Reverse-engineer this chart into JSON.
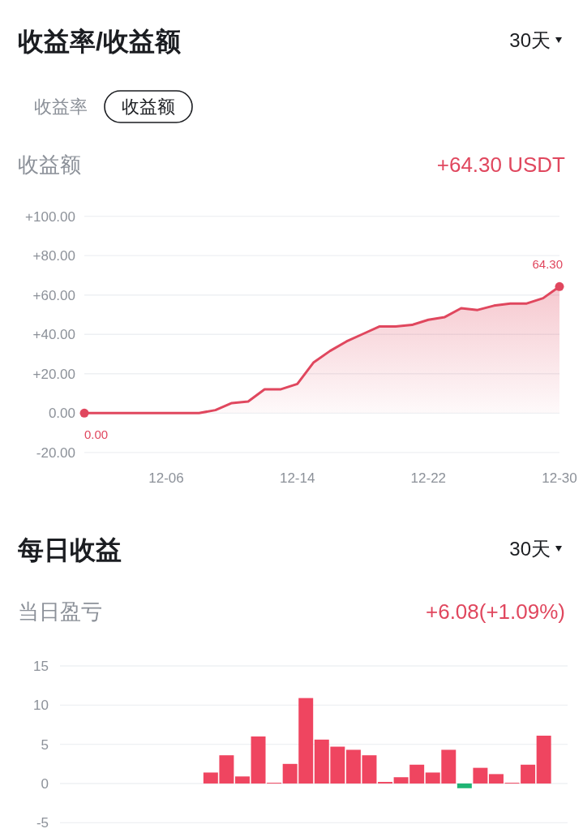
{
  "chart_data": [
    {
      "type": "area",
      "title": "收益率/收益额",
      "ylabel": "收益额",
      "annotations": [
        "30天",
        "收益率",
        "收益额",
        "+64.30 USDT"
      ],
      "categories": [
        null,
        null,
        null,
        null,
        null,
        "12-06",
        null,
        null,
        null,
        null,
        null,
        null,
        null,
        "12-14",
        null,
        null,
        null,
        null,
        null,
        null,
        null,
        "12-22",
        null,
        null,
        null,
        null,
        null,
        null,
        null,
        "12-30"
      ],
      "series": [
        {
          "color": "#e0475e",
          "values": [
            0,
            0,
            0,
            0,
            0,
            0,
            0,
            0,
            1.5,
            5.1,
            5.9,
            12.1,
            12.1,
            14.8,
            25.8,
            31.6,
            36.4,
            40.2,
            44.0,
            44.0,
            44.8,
            47.4,
            48.8,
            53.3,
            52.4,
            54.6,
            55.7,
            55.7,
            58.4,
            64.3
          ],
          "value_labels": [
            "0.00",
            null,
            null,
            null,
            null,
            null,
            null,
            null,
            null,
            null,
            null,
            null,
            null,
            null,
            null,
            null,
            null,
            null,
            null,
            null,
            null,
            null,
            null,
            null,
            null,
            null,
            null,
            null,
            null,
            "64.30"
          ]
        }
      ],
      "ylim": [
        -20,
        100
      ],
      "yticks": [
        {
          "value": -20,
          "label": "-20.00"
        },
        {
          "value": 0,
          "label": "0.00"
        },
        {
          "value": 20,
          "label": "+20.00"
        },
        {
          "value": 40,
          "label": "+40.00"
        },
        {
          "value": 60,
          "label": "+60.00"
        },
        {
          "value": 80,
          "label": "+80.00"
        },
        {
          "value": 100,
          "label": "+100.00"
        }
      ],
      "grid": "y"
    },
    {
      "type": "bar",
      "title": "每日收益",
      "ylabel": "当日盈亏",
      "annotations": [
        "30天",
        "+6.08(+1.09%)"
      ],
      "categories": [
        null,
        null,
        null,
        null,
        null,
        null,
        null,
        null,
        null,
        null,
        null,
        null,
        null,
        null,
        null,
        null,
        null,
        null,
        null,
        null,
        null,
        null,
        null,
        null,
        null,
        null,
        null,
        null,
        null,
        null,
        null,
        null
      ],
      "values": [
        null,
        null,
        null,
        null,
        null,
        null,
        null,
        null,
        null,
        1.4,
        3.6,
        0.9,
        6.0,
        0.1,
        2.5,
        10.9,
        5.6,
        4.7,
        4.3,
        3.6,
        0.2,
        0.8,
        2.4,
        1.4,
        4.3,
        -0.6,
        2.0,
        1.2,
        0.1,
        2.4,
        6.1,
        null
      ],
      "colors": [
        null,
        null,
        null,
        null,
        null,
        null,
        null,
        null,
        null,
        "#ef4560",
        "#ef4560",
        "#ef4560",
        "#ef4560",
        "#ef4560",
        "#ef4560",
        "#ef4560",
        "#ef4560",
        "#ef4560",
        "#ef4560",
        "#ef4560",
        "#ef4560",
        "#ef4560",
        "#ef4560",
        "#ef4560",
        "#ef4560",
        "#1fb574",
        "#ef4560",
        "#ef4560",
        "#ef4560",
        "#ef4560",
        "#ef4560",
        null
      ],
      "ylim": [
        -5,
        15
      ],
      "yticks": [
        -5,
        0,
        5,
        10,
        15
      ],
      "grid": "y"
    }
  ]
}
